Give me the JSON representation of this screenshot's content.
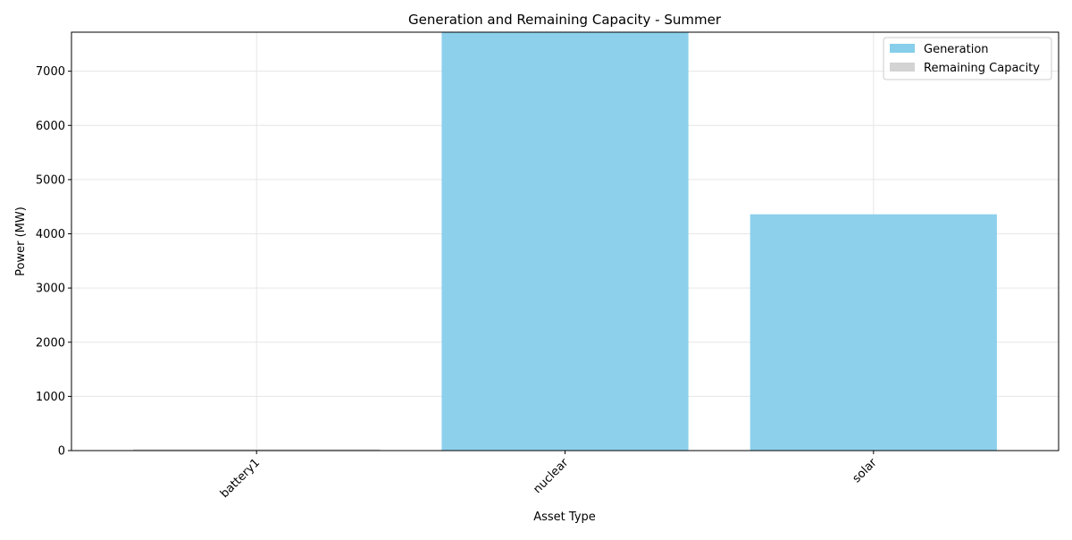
{
  "chart_data": {
    "type": "bar",
    "title": "Generation and Remaining Capacity - Summer",
    "xlabel": "Asset Type",
    "ylabel": "Power (MW)",
    "categories": [
      "battery1",
      "nuclear",
      "solar"
    ],
    "series": [
      {
        "name": "Generation",
        "color": "#87CEEB",
        "values": [
          0,
          7720,
          4360
        ]
      },
      {
        "name": "Remaining Capacity",
        "color": "#D3D3D3",
        "values": [
          25,
          0,
          0
        ]
      }
    ],
    "stacked": true,
    "ylim": [
      0,
      7720
    ],
    "yticks": [
      0,
      1000,
      2000,
      3000,
      4000,
      5000,
      6000,
      7000
    ],
    "grid": true,
    "legend_position": "top-right",
    "xtick_rotation": 45
  }
}
